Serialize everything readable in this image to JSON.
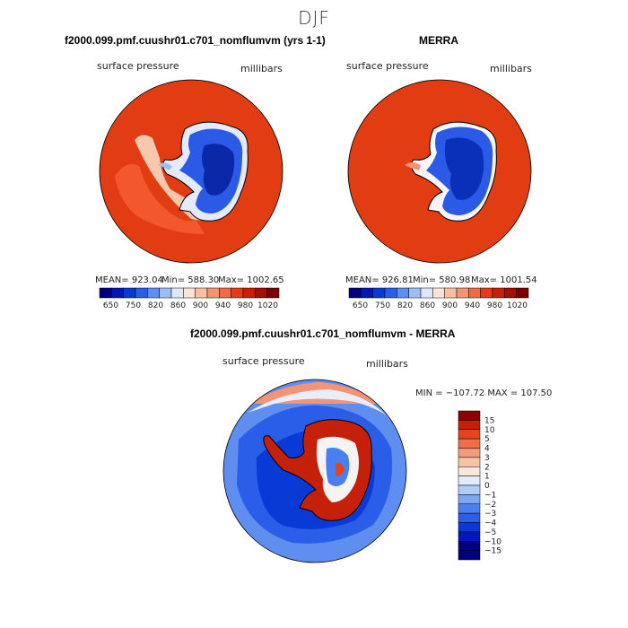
{
  "header": {
    "season": "DJF"
  },
  "colors": {
    "abs_levels": [
      "#00007f",
      "#0018b8",
      "#0a3ad6",
      "#2b5ee8",
      "#5e8ef0",
      "#9dbdf5",
      "#dbe7fb",
      "#fbe3d6",
      "#f8bfa0",
      "#f49474",
      "#ef6a46",
      "#e63a1a",
      "#c81e0a",
      "#a01005",
      "#7a0000"
    ],
    "diff_levels": [
      "#00007f",
      "#0018b8",
      "#0a3ad6",
      "#2b5ee8",
      "#4a7ff0",
      "#7ea4f4",
      "#b4cdf8",
      "#e3ecfb",
      "#fbe6dc",
      "#f7c2a6",
      "#f39a7c",
      "#ee6f4e",
      "#e4441f",
      "#c4200a",
      "#8c0000"
    ],
    "ocean_abs": "#e03d12",
    "ice_core": "#0a2fb8"
  },
  "chart_data": [
    {
      "type": "heatmap",
      "projection": "south-polar-stereographic",
      "title": "f2000.099.pmf.cuushr01.c701_nomflumvm (yrs 1-1)",
      "variable": "surface pressure",
      "units": "millibars",
      "stats": {
        "mean": "MEAN= 923.04",
        "min": "Min= 588.30",
        "max": "Max= 1002.65"
      },
      "colorbar_labels": [
        "650",
        "750",
        "820",
        "860",
        "900",
        "940",
        "980",
        "1020"
      ]
    },
    {
      "type": "heatmap",
      "projection": "south-polar-stereographic",
      "title": "MERRA",
      "variable": "surface pressure",
      "units": "millibars",
      "stats": {
        "mean": "MEAN= 926.81",
        "min": "Min= 580.98",
        "max": "Max= 1001.54"
      },
      "colorbar_labels": [
        "650",
        "750",
        "820",
        "860",
        "900",
        "940",
        "980",
        "1020"
      ]
    },
    {
      "type": "heatmap",
      "projection": "south-polar-stereographic",
      "title": "f2000.099.pmf.cuushr01.c701_nomflumvm - MERRA",
      "variable": "surface pressure",
      "units": "millibars",
      "stats": {
        "minmax": "MIN = −107.72  MAX = 107.50"
      },
      "colorbar_labels": [
        "15",
        "10",
        "5",
        "4",
        "3",
        "2",
        "1",
        "0",
        "−1",
        "−2",
        "−3",
        "−4",
        "−5",
        "−10",
        "−15"
      ]
    }
  ]
}
